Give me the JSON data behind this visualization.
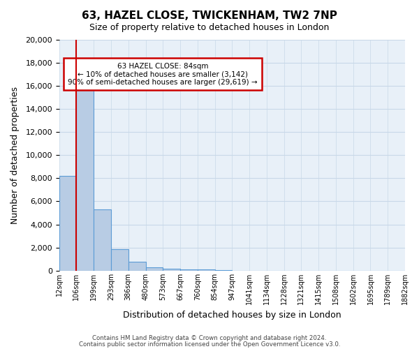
{
  "title": "63, HAZEL CLOSE, TWICKENHAM, TW2 7NP",
  "subtitle": "Size of property relative to detached houses in London",
  "xlabel": "Distribution of detached houses by size in London",
  "ylabel": "Number of detached properties",
  "bar_values": [
    8200,
    16600,
    5300,
    1850,
    800,
    300,
    200,
    130,
    100,
    60,
    0,
    0,
    0,
    0,
    0,
    0,
    0,
    0,
    0,
    0
  ],
  "bar_labels": [
    "12sqm",
    "106sqm",
    "199sqm",
    "293sqm",
    "386sqm",
    "480sqm",
    "573sqm",
    "667sqm",
    "760sqm",
    "854sqm",
    "947sqm",
    "1041sqm",
    "1134sqm",
    "1228sqm",
    "1321sqm",
    "1415sqm",
    "1508sqm",
    "1602sqm",
    "1695sqm",
    "1789sqm",
    "1882sqm"
  ],
  "ylim": [
    0,
    20000
  ],
  "yticks": [
    0,
    2000,
    4000,
    6000,
    8000,
    10000,
    12000,
    14000,
    16000,
    18000,
    20000
  ],
  "bar_color": "#b8cce4",
  "bar_edge_color": "#5b9bd5",
  "grid_color": "#c8d8e8",
  "bg_color": "#e8f0f8",
  "annotation_line1": "63 HAZEL CLOSE: 84sqm",
  "annotation_line2": "← 10% of detached houses are smaller (3,142)",
  "annotation_line3": "90% of semi-detached houses are larger (29,619) →",
  "annotation_box_edge_color": "#cc0000",
  "vline_color": "#cc0000",
  "footer_line1": "Contains HM Land Registry data © Crown copyright and database right 2024.",
  "footer_line2": "Contains public sector information licensed under the Open Government Licence v3.0."
}
